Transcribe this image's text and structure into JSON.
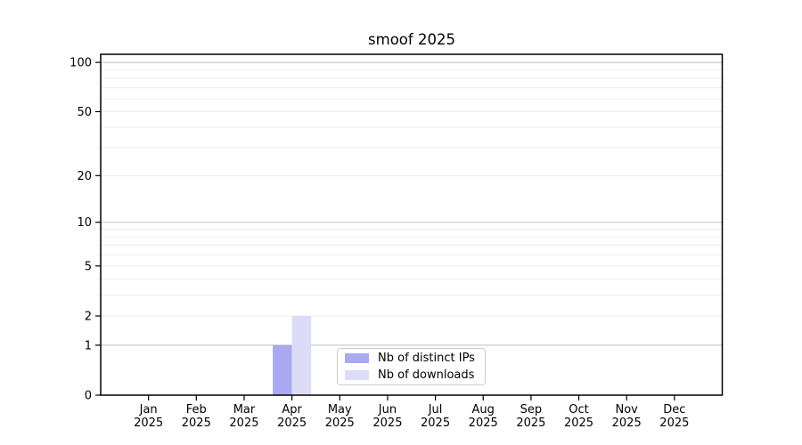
{
  "chart_data": {
    "type": "bar",
    "title": "smoof 2025",
    "categories": [
      "Jan",
      "Feb",
      "Mar",
      "Apr",
      "May",
      "Jun",
      "Jul",
      "Aug",
      "Sep",
      "Oct",
      "Nov",
      "Dec"
    ],
    "category_year": "2025",
    "series": [
      {
        "name": "Nb of distinct IPs",
        "color": "#a9a9f0",
        "values": [
          0,
          0,
          0,
          1,
          0,
          0,
          0,
          0,
          0,
          0,
          0,
          0
        ]
      },
      {
        "name": "Nb of downloads",
        "color": "#dcdcf8",
        "values": [
          0,
          0,
          0,
          2,
          0,
          0,
          0,
          0,
          0,
          0,
          0,
          0
        ]
      }
    ],
    "yscale": "log1p",
    "ylim": [
      0,
      112
    ],
    "yticks": [
      0,
      1,
      2,
      5,
      10,
      20,
      50,
      100
    ],
    "grid_major": [
      1,
      10,
      100
    ],
    "grid_minor": [
      2,
      3,
      4,
      6,
      7,
      8,
      9,
      5,
      20,
      30,
      40,
      50,
      60,
      70,
      80,
      90
    ],
    "legend_position": "lower center",
    "colors": {
      "axis": "#000000",
      "text": "#000000",
      "grid_major": "#bdbdbd",
      "grid_minor": "#ececec",
      "background": "#ffffff"
    }
  }
}
